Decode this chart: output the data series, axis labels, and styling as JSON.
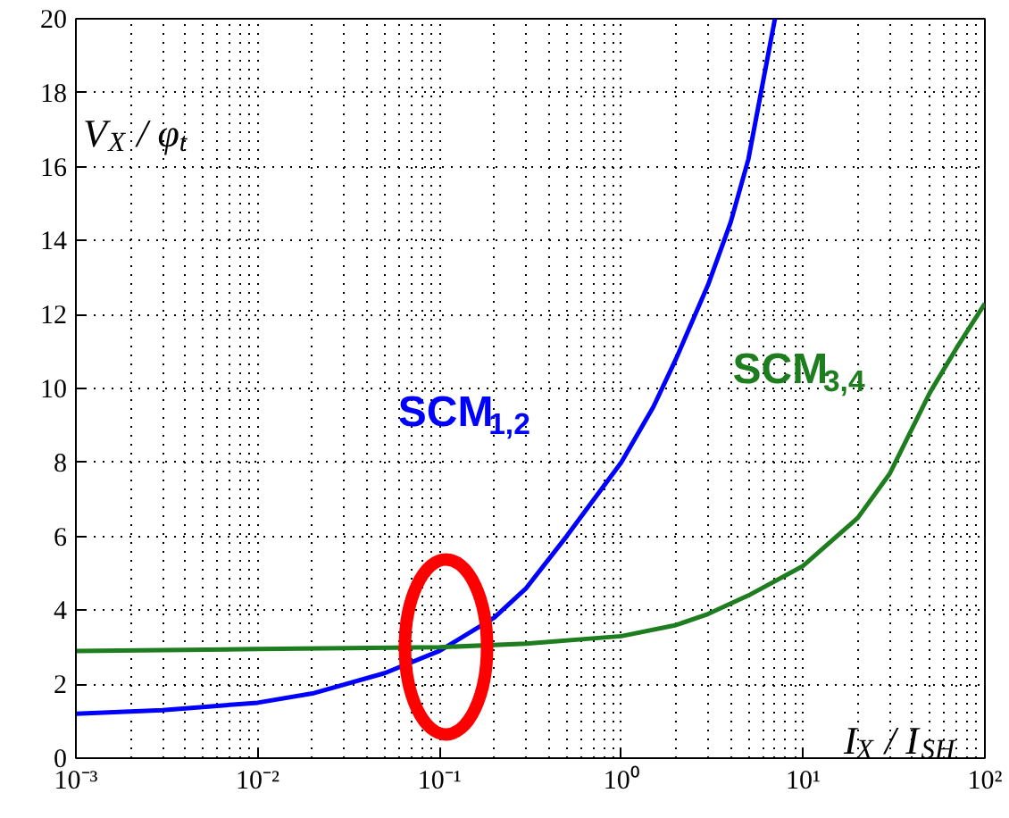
{
  "chart_data": {
    "type": "line",
    "xlabel": "I$_{X}$ / I$_{SH}$",
    "ylabel": "V$_{X}$ / φ$_{t}$",
    "log": "x",
    "xlim": [
      0.001,
      100
    ],
    "xticks": [
      {
        "value": 0.001,
        "label": "10⁻³"
      },
      {
        "value": 0.01,
        "label": "10⁻²"
      },
      {
        "value": 0.1,
        "label": "10⁻¹"
      },
      {
        "value": 1,
        "label": "10⁰"
      },
      {
        "value": 10,
        "label": "10¹"
      },
      {
        "value": 100,
        "label": "10²"
      }
    ],
    "ylim": [
      0,
      20
    ],
    "yticks": [
      0,
      2,
      4,
      6,
      8,
      10,
      12,
      14,
      16,
      18,
      20
    ],
    "grid": true,
    "line_style": "solid",
    "series": [
      {
        "name": "SCM$_{1,2}$",
        "color": "#0000ff",
        "x": [
          0.001,
          0.003,
          0.01,
          0.02,
          0.05,
          0.1,
          0.2,
          0.3,
          0.5,
          1,
          1.5,
          2,
          3,
          4,
          5,
          7
        ],
        "values": [
          1.2,
          1.3,
          1.5,
          1.75,
          2.3,
          2.9,
          3.8,
          4.6,
          6.0,
          8.0,
          9.5,
          10.8,
          12.8,
          14.5,
          16.2,
          20
        ]
      },
      {
        "name": "SCM$_{3,4}$",
        "color": "#1e7d1e",
        "x": [
          0.001,
          0.01,
          0.1,
          0.3,
          1,
          2,
          3,
          5,
          10,
          20,
          30,
          50,
          70,
          100
        ],
        "values": [
          2.9,
          2.95,
          3.0,
          3.1,
          3.3,
          3.6,
          3.9,
          4.4,
          5.2,
          6.5,
          7.7,
          9.9,
          11.1,
          12.3
        ]
      }
    ]
  }
}
